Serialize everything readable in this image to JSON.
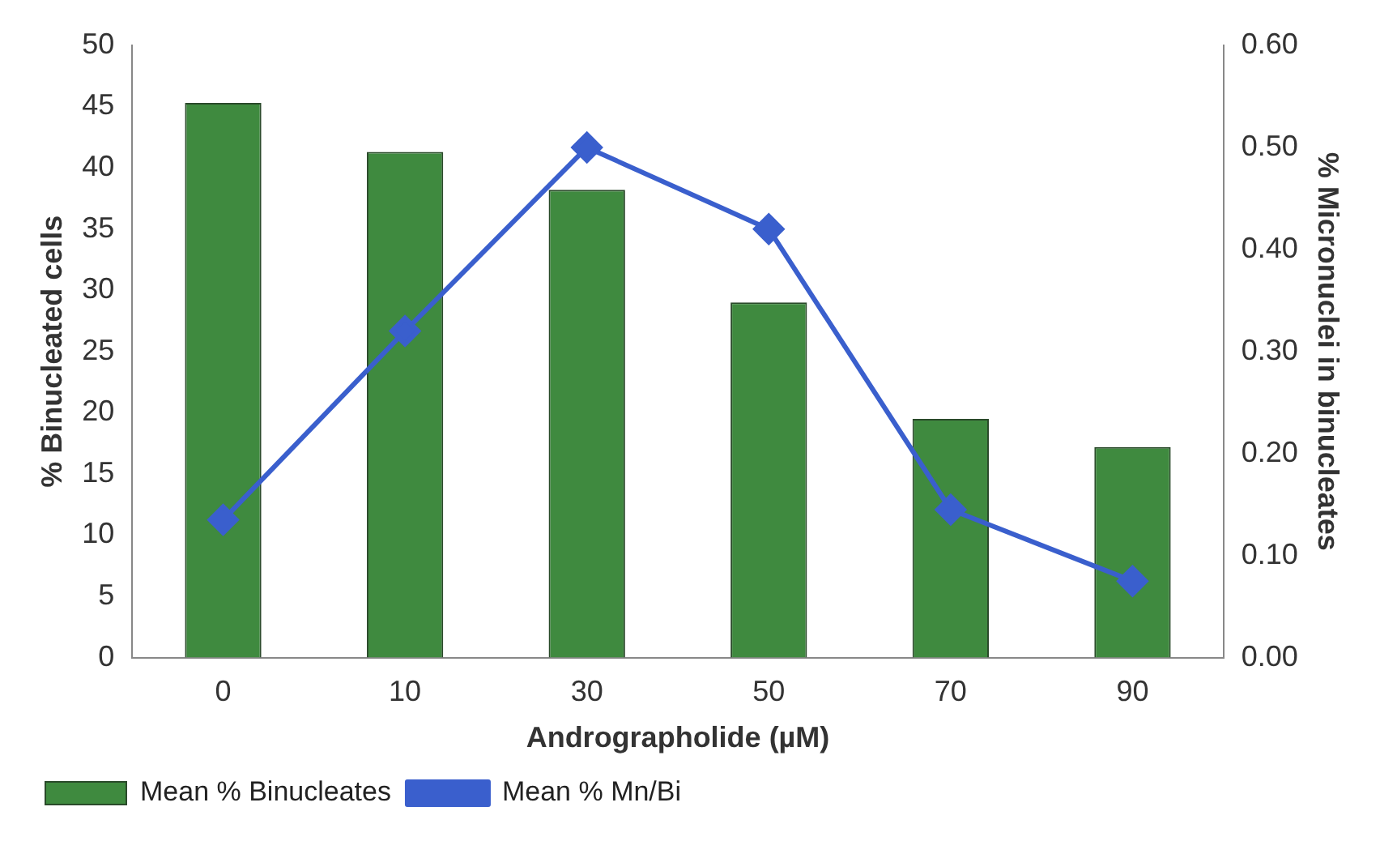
{
  "chart_data": {
    "type": "bar",
    "xlabel": "Andrographolide (µM)",
    "ylabel": "% Binucleated cells",
    "y2label": "% Micronuclei in binucleates",
    "categories": [
      "0",
      "10",
      "30",
      "50",
      "70",
      "90"
    ],
    "series": [
      {
        "name": "Mean % Binucleates",
        "color": "#3f8a3f",
        "values": [
          45.3,
          41.3,
          38.2,
          29,
          19.5,
          17.2
        ]
      },
      {
        "name": "Mean % Mn/Bi",
        "type": "line",
        "axis": "y2",
        "color": "#3a5fcd",
        "marker": "diamond",
        "values": [
          0.135,
          0.32,
          0.5,
          0.42,
          0.145,
          0.075
        ]
      }
    ],
    "ylim": [
      0,
      50
    ],
    "yticks": [
      0,
      5,
      10,
      15,
      20,
      25,
      30,
      35,
      40,
      45,
      50
    ],
    "y2lim": [
      0,
      0.6
    ],
    "y2ticks": [
      {
        "value": 0,
        "label": "0.00"
      },
      {
        "value": 0.1,
        "label": "0.10"
      },
      {
        "value": 0.2,
        "label": "0.20"
      },
      {
        "value": 0.3,
        "label": "0.30"
      },
      {
        "value": 0.4,
        "label": "0.40"
      },
      {
        "value": 0.5,
        "label": "0.50"
      },
      {
        "value": 0.6,
        "label": "0.60"
      }
    ],
    "grid": false,
    "legend": "bottom left"
  }
}
